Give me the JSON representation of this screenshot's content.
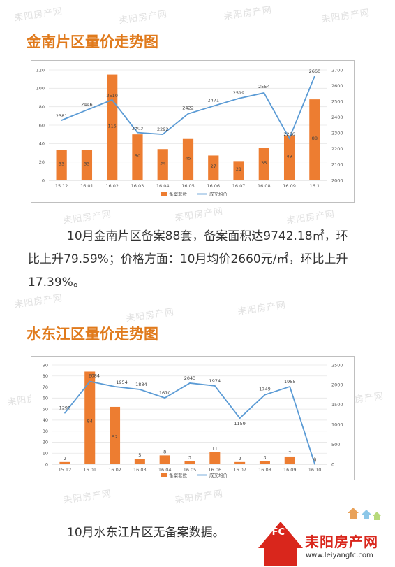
{
  "watermark": "耒阳房产网",
  "section1": {
    "title": "金南片区量价走势图",
    "paragraph_line1": "10月金南片区备案88套，备案面积达9742.18㎡，环",
    "paragraph_line2": "比上升79.59%；价格方面：10月均价2660元/㎡，环比上升",
    "paragraph_line3": "17.39%。"
  },
  "section2": {
    "title": "水东江区量价走势图",
    "paragraph": "10月水东江片区无备案数据。"
  },
  "logo": {
    "name": "耒阳房产网",
    "url": "www.leiyangfc.com",
    "abbr": "LYFC"
  },
  "chart_data": [
    {
      "type": "bar",
      "categories": [
        "15.12",
        "16.01",
        "16.02",
        "16.03",
        "16.04",
        "16.05",
        "16.06",
        "16.07",
        "16.08",
        "16.09",
        "16.1"
      ],
      "series": [
        {
          "name": "备案套数",
          "type": "bar",
          "axis": "left",
          "values": [
            33,
            33,
            115,
            50,
            34,
            45,
            27,
            21,
            35,
            49,
            88
          ],
          "color": "#ed7d31"
        },
        {
          "name": "成交均价",
          "type": "line",
          "axis": "right",
          "values": [
            2381,
            2446,
            2510,
            2303,
            2292,
            2422,
            2471,
            2519,
            2554,
            2266,
            2660
          ],
          "color": "#5b9bd5"
        }
      ],
      "ylim": [
        0,
        120
      ],
      "yticks": [
        0,
        20,
        40,
        60,
        80,
        100,
        120
      ],
      "y2lim": [
        2000,
        2700
      ],
      "y2ticks": [
        2000,
        2100,
        2200,
        2300,
        2400,
        2500,
        2600,
        2700
      ],
      "legend": "bottom"
    },
    {
      "type": "bar",
      "categories": [
        "15.12",
        "16.01",
        "16.02",
        "16.03",
        "16.04",
        "16.05",
        "16.06",
        "16.07",
        "16.08",
        "16.09",
        "16.10"
      ],
      "series": [
        {
          "name": "备案套数",
          "type": "bar",
          "axis": "left",
          "values": [
            2,
            84,
            52,
            5,
            8,
            3,
            11,
            2,
            3,
            7,
            0
          ],
          "color": "#ed7d31"
        },
        {
          "name": "成交均价",
          "type": "line",
          "axis": "right",
          "values": [
            1290,
            2084,
            1954,
            1884,
            1670,
            2043,
            1974,
            1159,
            1749,
            1955,
            0
          ],
          "color": "#5b9bd5"
        }
      ],
      "ylim": [
        0,
        90
      ],
      "yticks": [
        0,
        10,
        20,
        30,
        40,
        50,
        60,
        70,
        80,
        90
      ],
      "y2lim": [
        0,
        2500
      ],
      "y2ticks": [
        0,
        500,
        1000,
        1500,
        2000,
        2500
      ],
      "legend": "bottom"
    }
  ]
}
